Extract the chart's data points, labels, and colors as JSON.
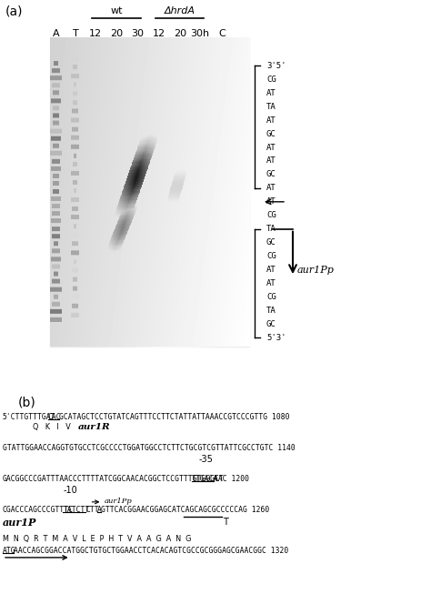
{
  "title_a": "(a)",
  "title_b": "(b)",
  "wt_label": "wt",
  "hrdA_label": "ΔhrdA",
  "lane_labels": [
    "A",
    "T",
    "12",
    "20",
    "30",
    "12",
    "20",
    "30h",
    "C"
  ],
  "sequence_top": [
    "3'5'",
    "CG",
    "AT",
    "TA",
    "AT",
    "GC",
    "AT",
    "AT",
    "GC",
    "AT",
    "AT",
    "CG",
    "TA",
    "GC",
    "CG",
    "AT",
    "AT",
    "CG",
    "TA",
    "GC",
    "5'3'"
  ],
  "aur1Pp_label": "aur1Pp",
  "background_color": "#ffffff"
}
